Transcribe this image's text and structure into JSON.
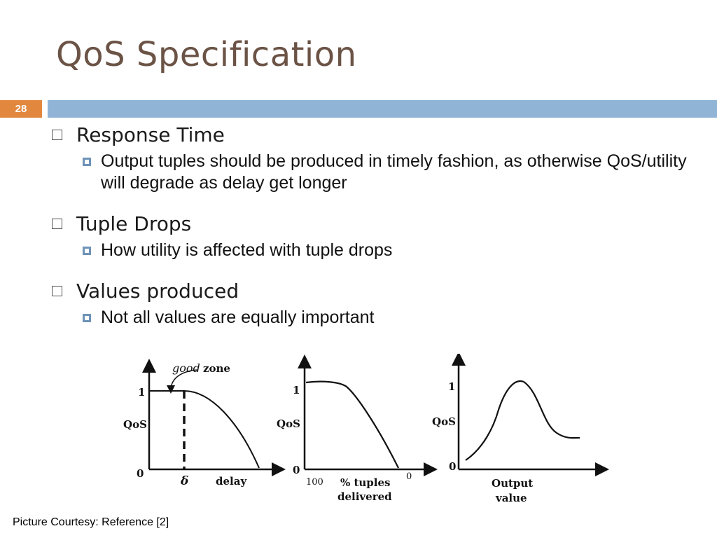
{
  "slide": {
    "title": "QoS Specification",
    "number": "28",
    "colors": {
      "title": "#6b5346",
      "number_box": "#e2883e",
      "bar": "#8fb4d6"
    }
  },
  "bullets": [
    {
      "label": "Response Time",
      "sub": "Output tuples should be produced in timely fashion, as otherwise QoS/utility will degrade as delay get longer"
    },
    {
      "label": "Tuple Drops",
      "sub": "How utility is affected with tuple drops"
    },
    {
      "label": "Values produced",
      "sub": "Not all values are equally important"
    }
  ],
  "figure": {
    "graph1": {
      "ylabel": "QoS",
      "y1": "1",
      "y0": "0",
      "xmark": "δ",
      "xlabel": "delay",
      "annotation_good": "good",
      "annotation_zone": "zone"
    },
    "graph2": {
      "ylabel": "QoS",
      "y1": "1",
      "y0": "0",
      "x_start": "100",
      "x_end": "0",
      "xlabel_line1": "% tuples",
      "xlabel_line2": "delivered"
    },
    "graph3": {
      "ylabel": "QoS",
      "y1": "1",
      "y0": "0",
      "xlabel_line1": "Output",
      "xlabel_line2": "value"
    }
  },
  "caption": "Picture Courtesy: Reference [2]"
}
